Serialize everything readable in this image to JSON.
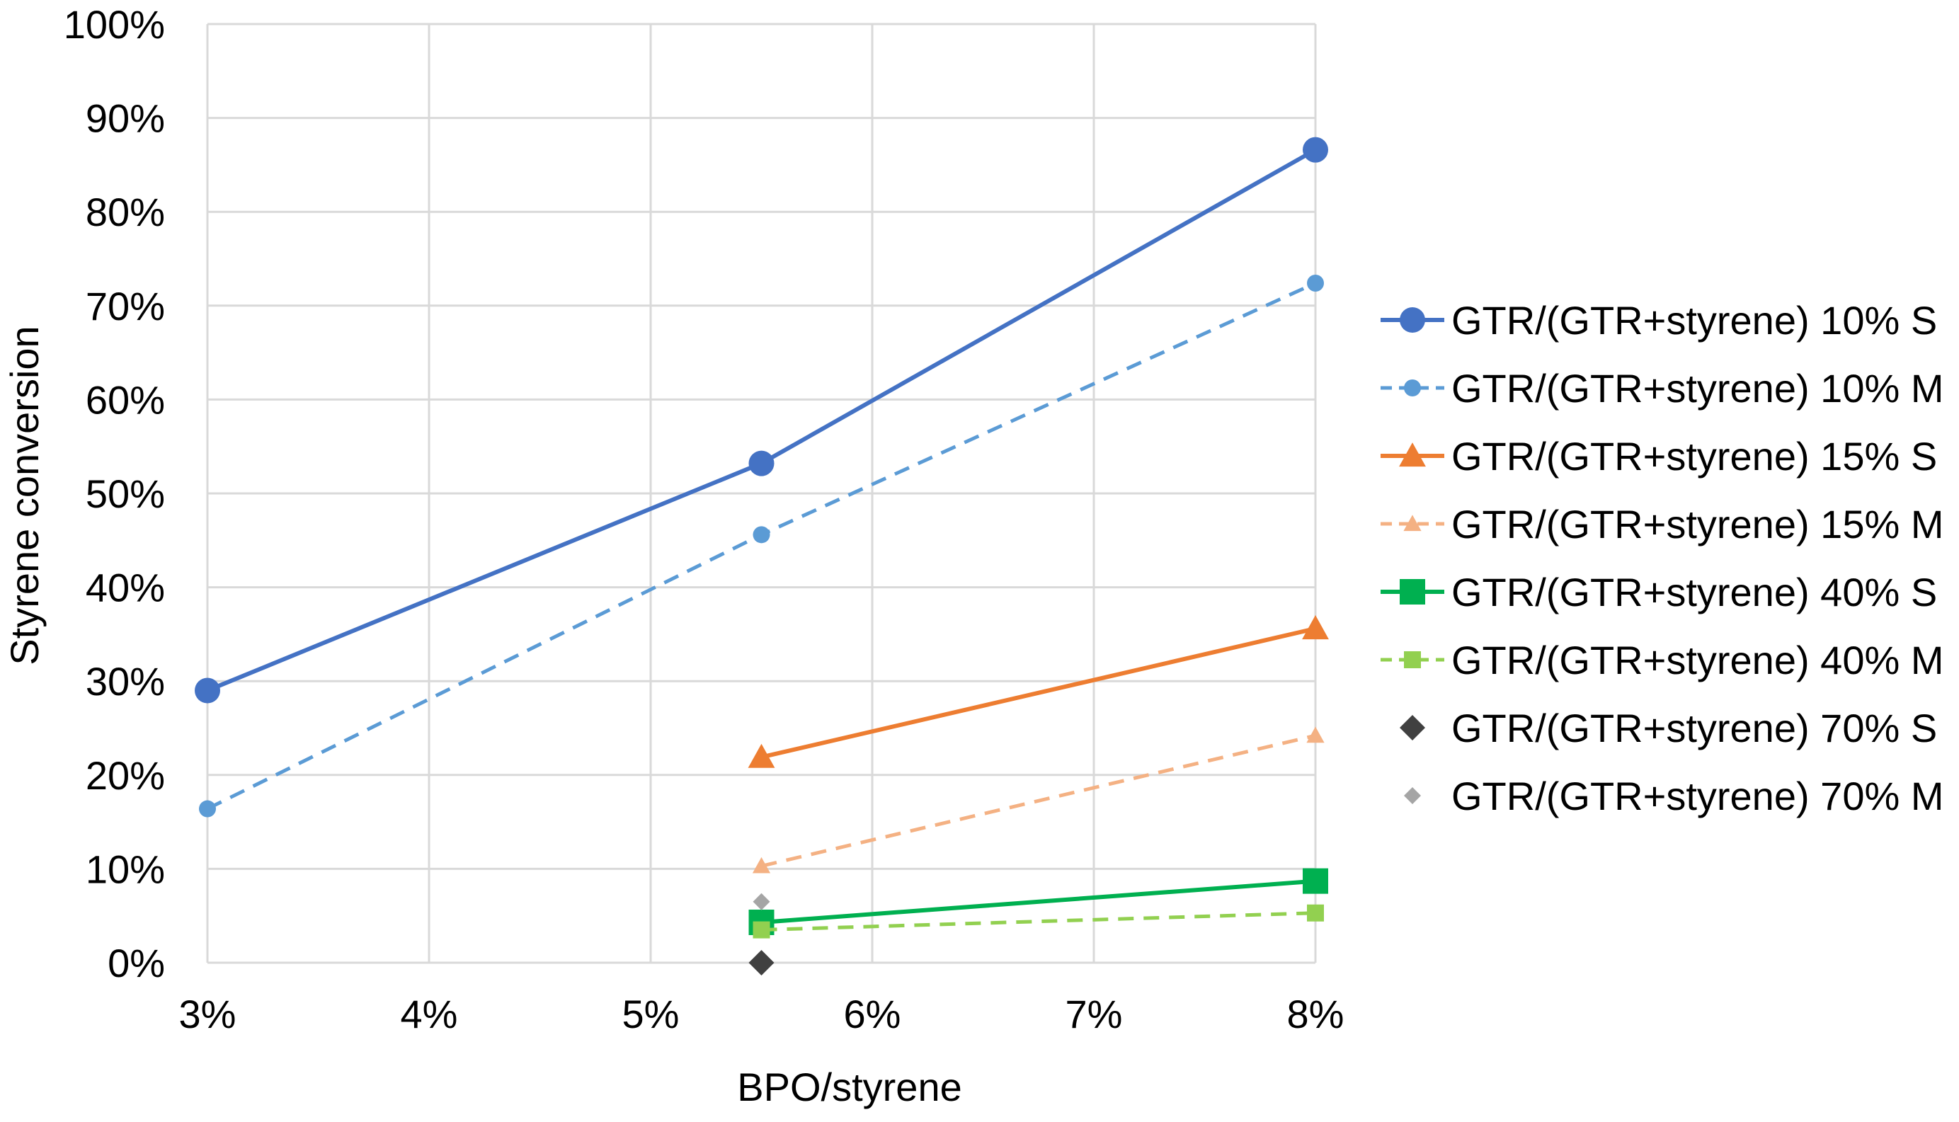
{
  "chart_data": {
    "type": "line",
    "title": "",
    "xlabel": "BPO/styrene",
    "ylabel": "Styrene conversion",
    "xlim": [
      0.03,
      0.08
    ],
    "ylim": [
      0,
      1.0
    ],
    "x_ticks": [
      0.03,
      0.04,
      0.05,
      0.06,
      0.07,
      0.08
    ],
    "x_tick_labels": [
      "3%",
      "4%",
      "5%",
      "6%",
      "7%",
      "8%"
    ],
    "y_ticks": [
      0,
      0.1,
      0.2,
      0.3,
      0.4,
      0.5,
      0.6,
      0.7,
      0.8,
      0.9,
      1.0
    ],
    "y_tick_labels": [
      "0%",
      "10%",
      "20%",
      "30%",
      "40%",
      "50%",
      "60%",
      "70%",
      "80%",
      "90%",
      "100%"
    ],
    "grid": true,
    "legend_position": "right",
    "series": [
      {
        "name": "GTR/(GTR+styrene) 10% S",
        "color": "#4472C4",
        "dashed": false,
        "marker": "circle",
        "marker_size": "large",
        "line": true,
        "x": [
          0.03,
          0.055,
          0.08
        ],
        "y": [
          0.29,
          0.532,
          0.866
        ]
      },
      {
        "name": "GTR/(GTR+styrene) 10% M",
        "color": "#5B9BD5",
        "dashed": true,
        "marker": "circle",
        "marker_size": "small",
        "line": true,
        "x": [
          0.03,
          0.055,
          0.08
        ],
        "y": [
          0.164,
          0.456,
          0.724
        ]
      },
      {
        "name": "GTR/(GTR+styrene) 15% S",
        "color": "#ED7D31",
        "dashed": false,
        "marker": "triangle",
        "marker_size": "large",
        "line": true,
        "x": [
          0.055,
          0.08
        ],
        "y": [
          0.219,
          0.356
        ]
      },
      {
        "name": "GTR/(GTR+styrene) 15% M",
        "color": "#F4B183",
        "dashed": true,
        "marker": "triangle",
        "marker_size": "small",
        "line": true,
        "x": [
          0.055,
          0.08
        ],
        "y": [
          0.103,
          0.242
        ]
      },
      {
        "name": "GTR/(GTR+styrene) 40% S",
        "color": "#00B050",
        "dashed": false,
        "marker": "square",
        "marker_size": "large",
        "line": true,
        "x": [
          0.055,
          0.08
        ],
        "y": [
          0.043,
          0.087
        ]
      },
      {
        "name": "GTR/(GTR+styrene) 40% M",
        "color": "#92D050",
        "dashed": true,
        "marker": "square",
        "marker_size": "small",
        "line": true,
        "x": [
          0.055,
          0.08
        ],
        "y": [
          0.035,
          0.053
        ]
      },
      {
        "name": "GTR/(GTR+styrene) 70% S",
        "color": "#404040",
        "dashed": false,
        "marker": "diamond",
        "marker_size": "large",
        "line": false,
        "x": [
          0.055
        ],
        "y": [
          0.0
        ]
      },
      {
        "name": "GTR/(GTR+styrene) 70% M",
        "color": "#A5A5A5",
        "dashed": false,
        "marker": "diamond",
        "marker_size": "small",
        "line": false,
        "x": [
          0.055
        ],
        "y": [
          0.065
        ]
      }
    ]
  }
}
